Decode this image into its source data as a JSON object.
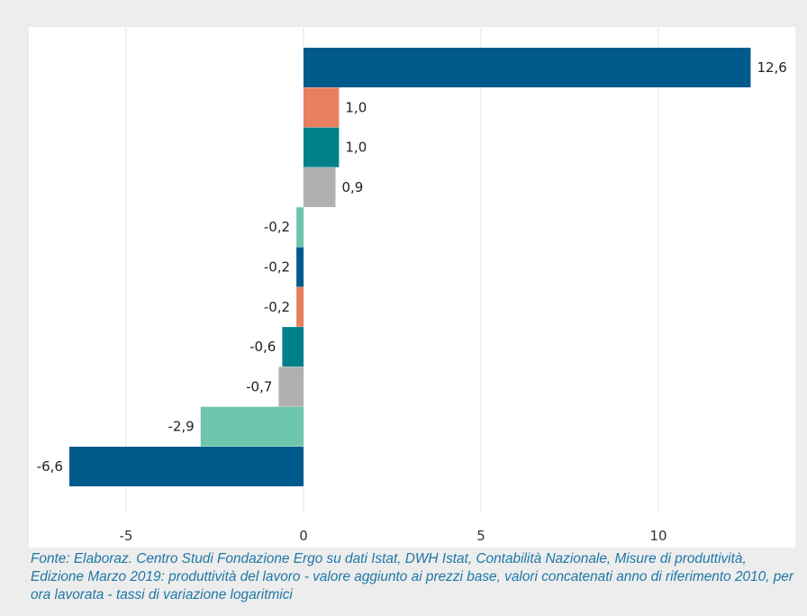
{
  "chart_data": {
    "type": "bar",
    "orientation": "horizontal",
    "title": "",
    "xlabel": "",
    "ylabel": "",
    "xlim": [
      -7.5,
      13
    ],
    "x_ticks": [
      -5,
      0,
      5,
      10
    ],
    "x_tick_labels": [
      "-5",
      "0",
      "5",
      "10"
    ],
    "grid": true,
    "legend": "none",
    "bars": [
      {
        "value": 12.6,
        "label": "12,6",
        "color": "#005b8c"
      },
      {
        "value": 1.0,
        "label": "1,0",
        "color": "#e8805f"
      },
      {
        "value": 1.0,
        "label": "1,0",
        "color": "#00808b"
      },
      {
        "value": 0.9,
        "label": "0,9",
        "color": "#b0b0b0"
      },
      {
        "value": -0.2,
        "label": "-0,2",
        "color": "#6ec5ad"
      },
      {
        "value": -0.2,
        "label": "-0,2",
        "color": "#005b8c"
      },
      {
        "value": -0.2,
        "label": "-0,2",
        "color": "#e8805f"
      },
      {
        "value": -0.6,
        "label": "-0,6",
        "color": "#00808b"
      },
      {
        "value": -0.7,
        "label": "-0,7",
        "color": "#b0b0b0"
      },
      {
        "value": -2.9,
        "label": "-2,9",
        "color": "#6ec5ad"
      },
      {
        "value": -6.6,
        "label": "-6,6",
        "color": "#005b8c"
      }
    ]
  },
  "footnote": "Fonte: Elaboraz. Centro Studi Fondazione Ergo su dati Istat, DWH Istat, Contabilità Nazionale, Misure di produttività, Edizione Marzo 2019: produttività del lavoro - valore aggiunto ai prezzi base, valori concatenati anno di riferimento 2010, per ora lavorata - tassi di variazione logaritmici"
}
